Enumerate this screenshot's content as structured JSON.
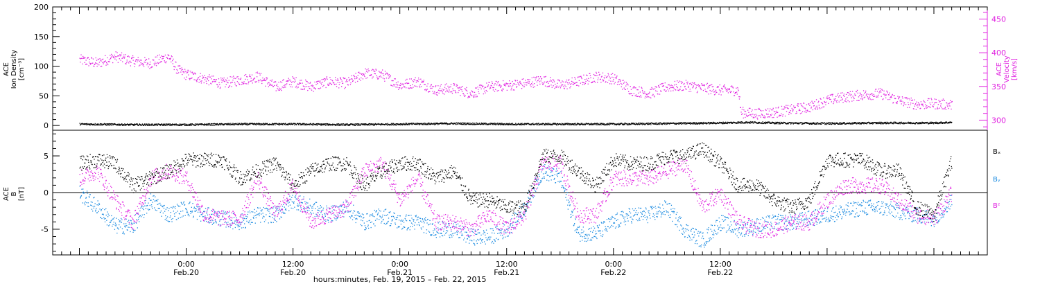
{
  "colors": {
    "density": "#000000",
    "velocity": "#e020e0",
    "bx": "#000000",
    "by": "#1a8ae0",
    "bz": "#e020e0",
    "axis": "#000000",
    "right_axis": "#e020e0"
  },
  "chart_data": [
    {
      "type": "scatter",
      "panel": "top",
      "left_axis": {
        "label_line1": "ACE",
        "label_line2": "Ion Density",
        "label_units": "[cm⁻³]",
        "range": [
          -8,
          200
        ],
        "ticks": [
          "0",
          "50",
          "100",
          "150",
          "200"
        ]
      },
      "right_axis": {
        "label_line1": "ACE",
        "label_line2": "Velocity",
        "label_units": "[km/s]",
        "range": [
          285,
          468
        ],
        "ticks": [
          "300",
          "350",
          "400",
          "450"
        ]
      },
      "series": [
        {
          "key": "density",
          "axis": "left",
          "x_hours": [
            0,
            6,
            12,
            18,
            24,
            30,
            36,
            42,
            48,
            54,
            60,
            66,
            72,
            75,
            78,
            84,
            90,
            96,
            98
          ],
          "values": [
            3,
            2,
            2,
            3,
            3,
            2,
            3,
            4,
            3,
            3,
            3,
            4,
            5,
            6,
            5,
            4,
            5,
            5,
            6
          ]
        },
        {
          "key": "velocity",
          "axis": "right",
          "x_hours": [
            0,
            2,
            4,
            6,
            8,
            10,
            11,
            12,
            14,
            16,
            18,
            20,
            22,
            24,
            26,
            28,
            30,
            32,
            34,
            36,
            38,
            40,
            42,
            44,
            46,
            48,
            50,
            52,
            54,
            56,
            58,
            60,
            62,
            64,
            66,
            68,
            70,
            72,
            74,
            74.3,
            76,
            78,
            80,
            82,
            84,
            86,
            88,
            90,
            92,
            94,
            96,
            98
          ],
          "values": [
            390,
            385,
            395,
            388,
            385,
            395,
            375,
            368,
            362,
            355,
            360,
            365,
            350,
            358,
            350,
            358,
            355,
            370,
            368,
            352,
            358,
            345,
            348,
            340,
            350,
            352,
            355,
            360,
            352,
            358,
            365,
            362,
            345,
            340,
            350,
            352,
            348,
            345,
            345,
            312,
            310,
            312,
            316,
            320,
            330,
            335,
            338,
            340,
            330,
            324,
            325,
            323
          ]
        }
      ]
    },
    {
      "type": "scatter",
      "panel": "bottom",
      "left_axis": {
        "label_line1": "ACE",
        "label_line2": "B",
        "label_units": "[nT]",
        "range": [
          -8.5,
          8.5
        ],
        "ticks": [
          "-5",
          "0",
          "5"
        ]
      },
      "legend": [
        "Bₓ",
        "Bᵧ",
        "Bᶻ"
      ],
      "series": [
        {
          "key": "bx",
          "x_hours": [
            0,
            2,
            4,
            6,
            8,
            10,
            12,
            14,
            16,
            18,
            20,
            22,
            24,
            26,
            28,
            30,
            32,
            34,
            36,
            38,
            40,
            42,
            44,
            46,
            48,
            50,
            52,
            54,
            56,
            58,
            60,
            62,
            64,
            66,
            68,
            70,
            72,
            74,
            76,
            78,
            80,
            82,
            84,
            86,
            88,
            90,
            92,
            94,
            96,
            98
          ],
          "values": [
            4,
            4.5,
            4,
            1,
            2,
            3,
            4.5,
            4.5,
            4.5,
            2,
            3,
            4,
            1,
            3,
            4,
            4,
            1,
            3,
            4,
            4,
            2,
            3,
            -1,
            -1,
            -2,
            -2,
            5,
            5,
            3,
            1,
            4.5,
            4,
            4,
            5,
            5,
            6,
            4,
            1,
            1,
            -1,
            -2,
            -1,
            4.5,
            4.5,
            4.5,
            3,
            3,
            -2,
            -3,
            4.5
          ]
        },
        {
          "key": "by",
          "x_hours": [
            0,
            2,
            4,
            6,
            8,
            10,
            12,
            14,
            16,
            18,
            20,
            22,
            24,
            26,
            28,
            30,
            32,
            34,
            36,
            38,
            40,
            42,
            44,
            46,
            48,
            50,
            52,
            54,
            56,
            58,
            60,
            62,
            64,
            66,
            68,
            70,
            72,
            74,
            76,
            78,
            80,
            82,
            84,
            86,
            88,
            90,
            92,
            94,
            96,
            98
          ],
          "values": [
            0,
            -2,
            -4.5,
            -4.5,
            -1,
            -3,
            -2,
            -3,
            -3.5,
            -4,
            -3,
            -3,
            -1,
            -2,
            -3,
            -2,
            -4,
            -3,
            -4,
            -4,
            -5,
            -5,
            -6,
            -6,
            -5,
            -2,
            3,
            2,
            -5.5,
            -5.5,
            -4,
            -3,
            -3,
            -2,
            -5,
            -6.5,
            -4,
            -5,
            -4.5,
            -4,
            -4,
            -3.5,
            -3,
            -2.5,
            -2,
            -2,
            -2.5,
            -3,
            -3.5,
            -1
          ]
        },
        {
          "key": "bz",
          "x_hours": [
            0,
            2,
            4,
            6,
            8,
            10,
            12,
            14,
            16,
            18,
            20,
            22,
            24,
            26,
            28,
            30,
            32,
            34,
            36,
            38,
            40,
            42,
            44,
            46,
            48,
            50,
            52,
            54,
            56,
            58,
            60,
            62,
            64,
            66,
            68,
            70,
            72,
            74,
            76,
            78,
            80,
            82,
            84,
            86,
            88,
            90,
            92,
            94,
            96,
            98
          ],
          "values": [
            2,
            3,
            -1,
            -4,
            2,
            3,
            2,
            -3,
            -3.5,
            -3.5,
            2,
            -3,
            1,
            -4,
            -3,
            -2,
            3,
            4,
            -1,
            2,
            -4,
            -4,
            -5,
            -3,
            -5,
            -3,
            4,
            4,
            -3,
            -3,
            2,
            2,
            2,
            3,
            4,
            -2,
            0,
            -4,
            -5,
            -5,
            -4,
            -4,
            -1,
            1,
            1,
            1,
            -1,
            -3,
            -3.5,
            0
          ]
        }
      ]
    }
  ],
  "x_axis": {
    "range_hours": [
      -3,
      102
    ],
    "ticks": [
      {
        "h": 12,
        "time": "0:00",
        "date": "Feb.20"
      },
      {
        "h": 24,
        "time": "12:00",
        "date": "Feb.20"
      },
      {
        "h": 36,
        "time": "0:00",
        "date": "Feb.21"
      },
      {
        "h": 48,
        "time": "12:00",
        "date": "Feb.21"
      },
      {
        "h": 60,
        "time": "0:00",
        "date": "Feb.22"
      },
      {
        "h": 72,
        "time": "12:00",
        "date": "Feb.22"
      }
    ],
    "xlabel": "hours:minutes, Feb. 19, 2015 – Feb. 22, 2015"
  }
}
